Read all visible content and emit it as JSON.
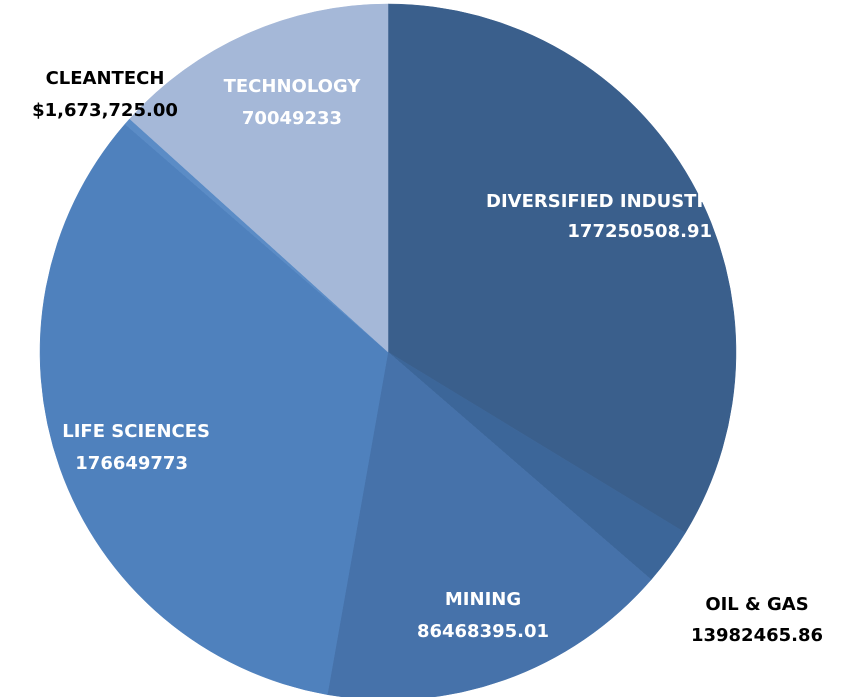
{
  "chart_data": {
    "type": "pie",
    "categories": [
      "DIVERSIFIED INDUSTRIES",
      "OIL & GAS",
      "MINING",
      "LIFE SCIENCES",
      "CLEANTECH",
      "TECHNOLOGY"
    ],
    "values": [
      177250508.91,
      13982465.86,
      86468395.01,
      176649773,
      1673725,
      70049233
    ],
    "value_labels": [
      "177250508.91",
      "13982465.86",
      "86468395.01",
      "176649773",
      "$1,673,725.00",
      "70049233"
    ],
    "colors": [
      "#3a5f8c",
      "#3c6699",
      "#4672aa",
      "#4f81bd",
      "#5b8cc6",
      "#a5b8d8"
    ]
  }
}
